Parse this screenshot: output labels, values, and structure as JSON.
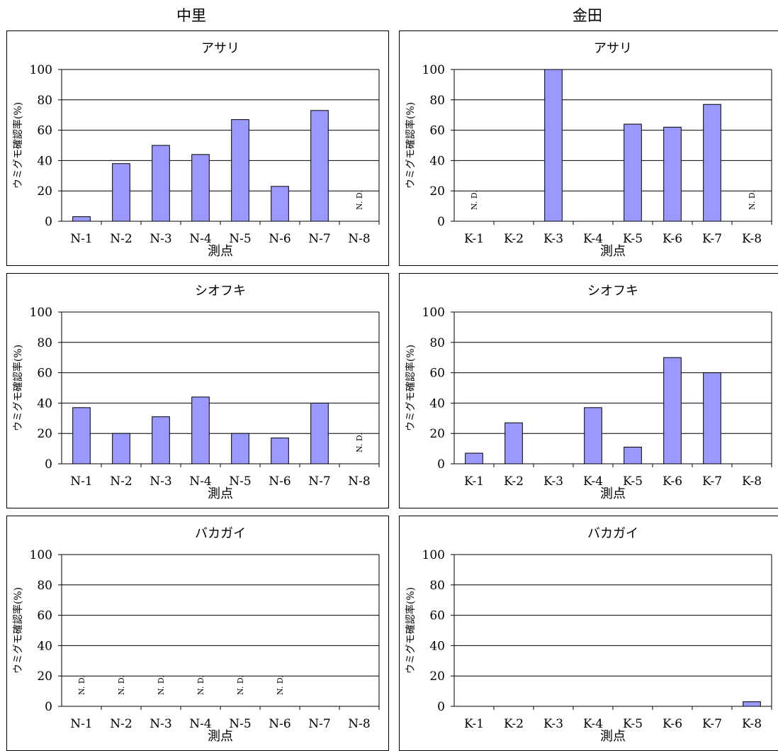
{
  "column_titles": [
    "中里",
    "金田"
  ],
  "shared": {
    "ylabel": "ウミグモ確認率(%)",
    "xlabel": "測点",
    "nd_label": "N. D.",
    "bar_color": "#9999ff",
    "yticks": [
      0,
      20,
      40,
      60,
      80,
      100
    ]
  },
  "chart_data": [
    {
      "type": "bar",
      "site": "中里",
      "title": "アサリ",
      "categories": [
        "N-1",
        "N-2",
        "N-3",
        "N-4",
        "N-5",
        "N-6",
        "N-7",
        "N-8"
      ],
      "values": [
        3,
        38,
        50,
        44,
        67,
        23,
        73,
        null
      ],
      "nd": [
        false,
        false,
        false,
        false,
        false,
        false,
        false,
        true
      ],
      "xlabel": "測点",
      "ylabel": "ウミグモ確認率(%)",
      "ylim": [
        0,
        100
      ],
      "grid": true
    },
    {
      "type": "bar",
      "site": "金田",
      "title": "アサリ",
      "categories": [
        "K-1",
        "K-2",
        "K-3",
        "K-4",
        "K-5",
        "K-6",
        "K-7",
        "K-8"
      ],
      "values": [
        null,
        0,
        100,
        0,
        64,
        62,
        77,
        null
      ],
      "nd": [
        true,
        false,
        false,
        false,
        false,
        false,
        false,
        true
      ],
      "xlabel": "測点",
      "ylabel": "ウミグモ確認率(%)",
      "ylim": [
        0,
        100
      ],
      "grid": true
    },
    {
      "type": "bar",
      "site": "中里",
      "title": "シオフキ",
      "categories": [
        "N-1",
        "N-2",
        "N-3",
        "N-4",
        "N-5",
        "N-6",
        "N-7",
        "N-8"
      ],
      "values": [
        37,
        20,
        31,
        44,
        20,
        17,
        40,
        null
      ],
      "nd": [
        false,
        false,
        false,
        false,
        false,
        false,
        false,
        true
      ],
      "xlabel": "測点",
      "ylabel": "ウミグモ確認率(%)",
      "ylim": [
        0,
        100
      ],
      "grid": true
    },
    {
      "type": "bar",
      "site": "金田",
      "title": "シオフキ",
      "categories": [
        "K-1",
        "K-2",
        "K-3",
        "K-4",
        "K-5",
        "K-6",
        "K-7",
        "K-8"
      ],
      "values": [
        7,
        27,
        0,
        37,
        11,
        70,
        60,
        0
      ],
      "nd": [
        false,
        false,
        false,
        false,
        false,
        false,
        false,
        false
      ],
      "xlabel": "測点",
      "ylabel": "ウミグモ確認率(%)",
      "ylim": [
        0,
        100
      ],
      "grid": true
    },
    {
      "type": "bar",
      "site": "中里",
      "title": "バカガイ",
      "categories": [
        "N-1",
        "N-2",
        "N-3",
        "N-4",
        "N-5",
        "N-6",
        "N-7",
        "N-8"
      ],
      "values": [
        null,
        null,
        null,
        null,
        null,
        null,
        0,
        0
      ],
      "nd": [
        true,
        true,
        true,
        true,
        true,
        true,
        false,
        false
      ],
      "xlabel": "測点",
      "ylabel": "ウミグモ確認率(%)",
      "ylim": [
        0,
        100
      ],
      "grid": true
    },
    {
      "type": "bar",
      "site": "金田",
      "title": "バカガイ",
      "categories": [
        "K-1",
        "K-2",
        "K-3",
        "K-4",
        "K-5",
        "K-6",
        "K-7",
        "K-8"
      ],
      "values": [
        0,
        0,
        0,
        0,
        0,
        0,
        0,
        3
      ],
      "nd": [
        false,
        false,
        false,
        false,
        false,
        false,
        false,
        false
      ],
      "xlabel": "測点",
      "ylabel": "ウミグモ確認率(%)",
      "ylim": [
        0,
        100
      ],
      "grid": true
    }
  ]
}
